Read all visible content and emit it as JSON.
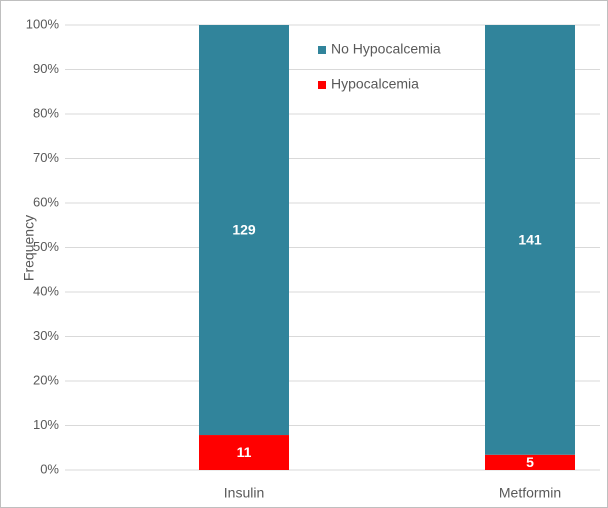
{
  "chart_data": {
    "type": "bar",
    "stacked": "percent",
    "y_label": "Frequency",
    "categories": [
      "Insulin",
      "Metformin"
    ],
    "series": [
      {
        "name": "Hypocalcemia",
        "color": "#ff0000",
        "values": [
          11,
          5
        ]
      },
      {
        "name": "No Hypocalcemia",
        "color": "#31849b",
        "values": [
          129,
          141
        ]
      }
    ],
    "ylim": [
      0,
      100
    ],
    "yticks": [
      {
        "value": 0,
        "label": "0%"
      },
      {
        "value": 10,
        "label": "10%"
      },
      {
        "value": 20,
        "label": "20%"
      },
      {
        "value": 30,
        "label": "30%"
      },
      {
        "value": 40,
        "label": "40%"
      },
      {
        "value": 50,
        "label": "50%"
      },
      {
        "value": 60,
        "label": "60%"
      },
      {
        "value": 70,
        "label": "70%"
      },
      {
        "value": 80,
        "label": "80%"
      },
      {
        "value": 90,
        "label": "90%"
      },
      {
        "value": 100,
        "label": "100%"
      }
    ],
    "grid": true,
    "legend": "top"
  }
}
